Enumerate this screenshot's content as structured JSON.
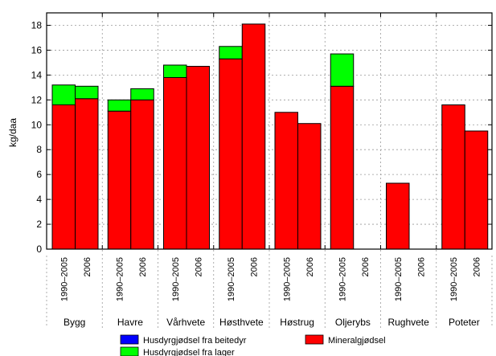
{
  "chart_data": {
    "type": "bar",
    "stacked": true,
    "ylabel": "kg/daa",
    "ylim": [
      0,
      19
    ],
    "yticks": [
      0,
      2,
      4,
      6,
      8,
      10,
      12,
      14,
      16,
      18
    ],
    "grid": true,
    "legend_position": "bottom",
    "groups": [
      {
        "name": "Bygg",
        "bars": [
          {
            "label": "1990–2005",
            "mineral": 11.6,
            "lager": 1.6,
            "beite": 0
          },
          {
            "label": "2006",
            "mineral": 12.1,
            "lager": 1.0,
            "beite": 0
          }
        ]
      },
      {
        "name": "Havre",
        "bars": [
          {
            "label": "1990–2005",
            "mineral": 11.1,
            "lager": 0.9,
            "beite": 0
          },
          {
            "label": "2006",
            "mineral": 12.0,
            "lager": 0.9,
            "beite": 0
          }
        ]
      },
      {
        "name": "Vårhvete",
        "bars": [
          {
            "label": "1990–2005",
            "mineral": 13.8,
            "lager": 1.0,
            "beite": 0
          },
          {
            "label": "2006",
            "mineral": 14.7,
            "lager": 0,
            "beite": 0
          }
        ]
      },
      {
        "name": "Høsthvete",
        "bars": [
          {
            "label": "1990–2005",
            "mineral": 15.3,
            "lager": 1.0,
            "beite": 0
          },
          {
            "label": "2006",
            "mineral": 18.1,
            "lager": 0,
            "beite": 0
          }
        ]
      },
      {
        "name": "Høstrug",
        "bars": [
          {
            "label": "1990–2005",
            "mineral": 11.0,
            "lager": 0,
            "beite": 0
          },
          {
            "label": "2006",
            "mineral": 10.1,
            "lager": 0,
            "beite": 0
          }
        ]
      },
      {
        "name": "Oljerybs",
        "bars": [
          {
            "label": "1990–2005",
            "mineral": 13.1,
            "lager": 2.6,
            "beite": 0
          },
          {
            "label": "2006",
            "mineral": 0,
            "lager": 0,
            "beite": 0
          }
        ]
      },
      {
        "name": "Rughvete",
        "bars": [
          {
            "label": "1990–2005",
            "mineral": 5.3,
            "lager": 0,
            "beite": 0
          },
          {
            "label": "2006",
            "mineral": 0,
            "lager": 0,
            "beite": 0
          }
        ]
      },
      {
        "name": "Poteter",
        "bars": [
          {
            "label": "1990–2005",
            "mineral": 11.6,
            "lager": 0,
            "beite": 0
          },
          {
            "label": "2006",
            "mineral": 9.5,
            "lager": 0,
            "beite": 0
          }
        ]
      }
    ],
    "series": [
      {
        "key": "beite",
        "name": "Husdyrgjødsel fra beitedyr",
        "color": "#0000ff"
      },
      {
        "key": "lager",
        "name": "Husdyrgjødsel fra lager",
        "color": "#00ff00"
      },
      {
        "key": "mineral",
        "name": "Mineralgjødsel",
        "color": "#ff0000"
      }
    ]
  }
}
